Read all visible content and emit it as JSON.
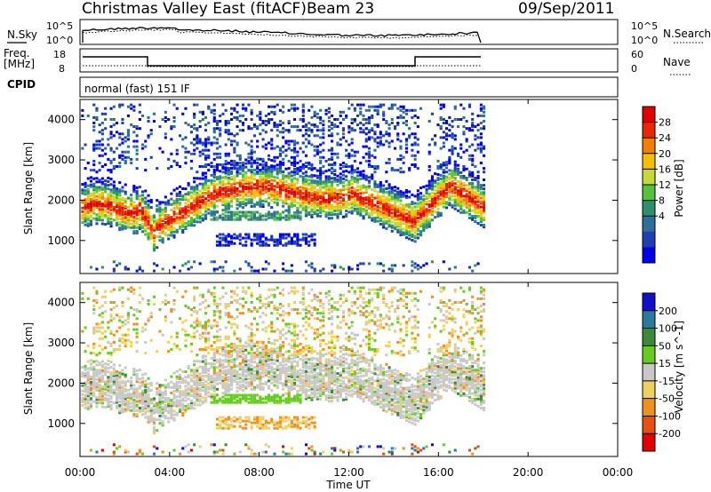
{
  "header": {
    "station": "Christmas Valley East (fitACF)",
    "beam": "Beam 23",
    "date": "09/Sep/2011"
  },
  "noise_panel": {
    "left_label": "N.Sky",
    "right_label": "N.Search",
    "left_ticks": [
      "10^5",
      "10^0"
    ],
    "right_ticks": [
      "10^5",
      "10^0"
    ]
  },
  "freq_panel": {
    "left_label_top": "Freq.",
    "left_label_bottom": "[MHz]",
    "right_label": "Nave",
    "left_ticks": [
      "18",
      "8"
    ],
    "right_ticks": [
      "60",
      "0"
    ]
  },
  "cpid": {
    "label": "CPID",
    "program": "normal (fast) 151 IF"
  },
  "chart_data": [
    {
      "type": "heatmap",
      "name": "Power",
      "ylabel": "Slant Range [km]",
      "xlabel": "Time UT",
      "x_ticks": [
        "00:00",
        "04:00",
        "08:00",
        "12:00",
        "16:00",
        "20:00",
        "00:00"
      ],
      "y_ticks": [
        "1000",
        "2000",
        "3000",
        "4000"
      ],
      "ylim": [
        180,
        4500
      ],
      "colorbar": {
        "label": "Power [dB]",
        "ticks": [
          "4",
          "8",
          "12",
          "16",
          "20",
          "24",
          "28"
        ],
        "range": [
          0,
          30
        ],
        "colors": [
          "#0000e8",
          "#1f3fb0",
          "#2f6e9a",
          "#2e8f6e",
          "#55c23c",
          "#c8d838",
          "#f5c000",
          "#f08000",
          "#e82800",
          "#e00000"
        ]
      },
      "features": [
        {
          "desc": "main band",
          "x_hours": [
            0,
            18
          ],
          "y_km": [
            1200,
            2600
          ]
        },
        {
          "desc": "upper scatter",
          "x_hours": [
            0,
            18
          ],
          "y_km": [
            2800,
            4400
          ]
        },
        {
          "desc": "lower patch",
          "x_hours": [
            5.7,
            10.5
          ],
          "y_km": [
            850,
            1800
          ]
        }
      ]
    },
    {
      "type": "heatmap",
      "name": "Velocity",
      "ylabel": "Slant Range [km]",
      "xlabel": "Time UT",
      "x_ticks": [
        "00:00",
        "04:00",
        "08:00",
        "12:00",
        "16:00",
        "20:00",
        "00:00"
      ],
      "y_ticks": [
        "1000",
        "2000",
        "3000",
        "4000"
      ],
      "ylim": [
        180,
        4500
      ],
      "colorbar": {
        "label": "Velocity [m s^-1]",
        "ticks": [
          "200",
          "100",
          "50",
          "15",
          "-15",
          "-50",
          "-100",
          "-200"
        ],
        "colors": [
          "#1010c8",
          "#2a7a9e",
          "#3a8a3a",
          "#66cc22",
          "#c8c8c8",
          "#f0d060",
          "#f09020",
          "#e85010",
          "#e00000"
        ]
      }
    }
  ]
}
